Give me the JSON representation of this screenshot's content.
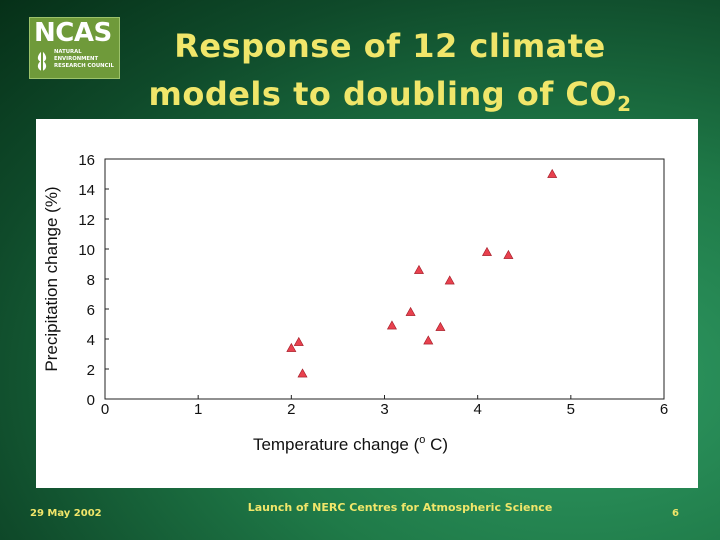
{
  "logo": {
    "word": "NCAS",
    "sub_lines": [
      "NATURAL",
      "ENVIRONMENT",
      "RESEARCH COUNCIL"
    ]
  },
  "slide": {
    "title_line1": "Response of 12 climate",
    "title_line2": "models to doubling of CO",
    "title_subscript": "2"
  },
  "footer": {
    "date": "29 May 2002",
    "center": "Launch of NERC Centres for Atmospheric Science",
    "page": "6"
  },
  "colors": {
    "title": "#f0e66a",
    "marker": "#e8414e",
    "background": "#1f7a48"
  },
  "chart_data": {
    "type": "scatter",
    "xlabel": "Temperature change (",
    "xlabel_sup": "o",
    "xlabel_end": " C)",
    "ylabel": "Precipitation change (%)",
    "xlim": [
      0,
      6
    ],
    "ylim": [
      0,
      16
    ],
    "xticks": [
      0,
      1,
      2,
      3,
      4,
      5,
      6
    ],
    "yticks": [
      0,
      2,
      4,
      6,
      8,
      10,
      12,
      14,
      16
    ],
    "marker": "triangle",
    "points": [
      {
        "x": 2.0,
        "y": 3.4
      },
      {
        "x": 2.08,
        "y": 3.8
      },
      {
        "x": 2.12,
        "y": 1.7
      },
      {
        "x": 3.08,
        "y": 4.9
      },
      {
        "x": 3.28,
        "y": 5.8
      },
      {
        "x": 3.37,
        "y": 8.6
      },
      {
        "x": 3.47,
        "y": 3.9
      },
      {
        "x": 3.6,
        "y": 4.8
      },
      {
        "x": 3.7,
        "y": 7.9
      },
      {
        "x": 4.1,
        "y": 9.8
      },
      {
        "x": 4.33,
        "y": 9.6
      },
      {
        "x": 4.8,
        "y": 15.0
      }
    ]
  }
}
